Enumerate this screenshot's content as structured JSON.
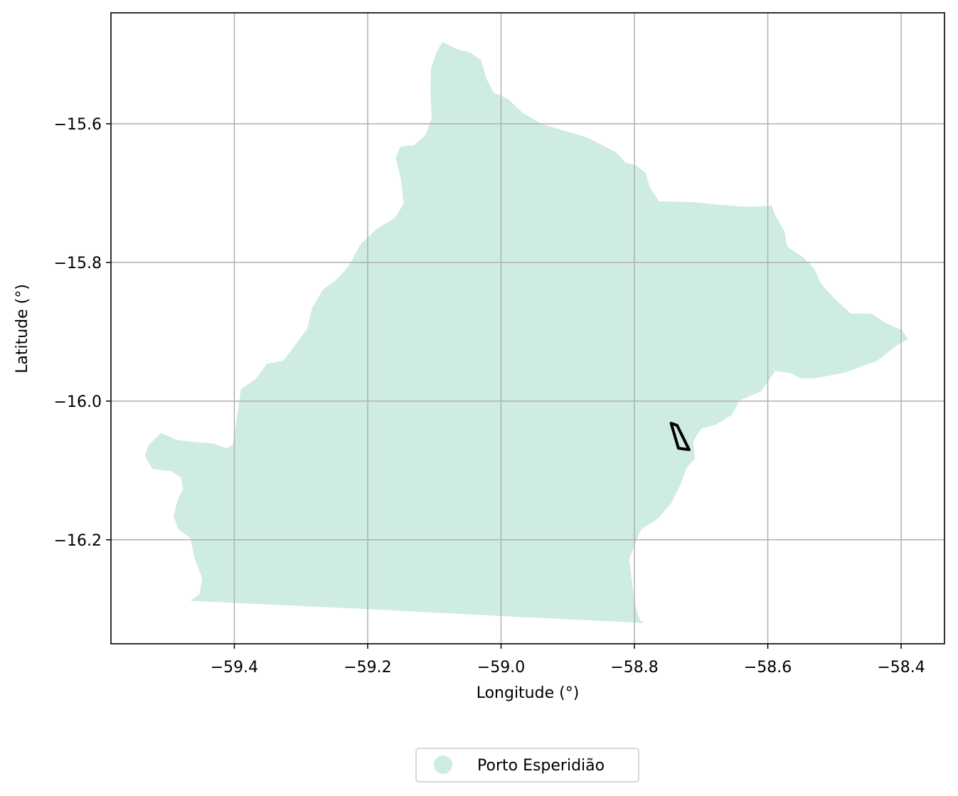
{
  "colors": {
    "region_fill": "#cfece0",
    "outline": "#000000",
    "grid": "#b0b0b0"
  },
  "chart_data": {
    "type": "map",
    "xlabel": "Longitude (°)",
    "ylabel": "Latitude (°)",
    "xlim": [
      -59.585,
      -58.335
    ],
    "ylim": [
      -16.35,
      -15.44
    ],
    "grid": true,
    "legend_placement": "bottom-center",
    "x_ticks": [
      {
        "value": -59.4,
        "label": "−59.4"
      },
      {
        "value": -59.2,
        "label": "−59.2"
      },
      {
        "value": -59.0,
        "label": "−59.0"
      },
      {
        "value": -58.8,
        "label": "−58.8"
      },
      {
        "value": -58.6,
        "label": "−58.6"
      },
      {
        "value": -58.4,
        "label": "−58.4"
      }
    ],
    "y_ticks": [
      {
        "value": -15.6,
        "label": "−15.6"
      },
      {
        "value": -15.8,
        "label": "−15.8"
      },
      {
        "value": -16.0,
        "label": "−16.0"
      },
      {
        "value": -16.2,
        "label": "−16.2"
      }
    ],
    "legend": [
      {
        "label": "Porto Esperidião",
        "color": "#cfece0"
      }
    ],
    "region": {
      "name": "Porto Esperidião",
      "polygon": [
        [
          -59.088,
          -15.482
        ],
        [
          -59.064,
          -15.493
        ],
        [
          -59.047,
          -15.497
        ],
        [
          -59.03,
          -15.508
        ],
        [
          -59.022,
          -15.535
        ],
        [
          -59.011,
          -15.555
        ],
        [
          -58.99,
          -15.564
        ],
        [
          -58.968,
          -15.584
        ],
        [
          -58.94,
          -15.6
        ],
        [
          -58.87,
          -15.62
        ],
        [
          -58.828,
          -15.641
        ],
        [
          -58.813,
          -15.656
        ],
        [
          -58.796,
          -15.661
        ],
        [
          -58.783,
          -15.671
        ],
        [
          -58.777,
          -15.691
        ],
        [
          -58.763,
          -15.712
        ],
        [
          -58.711,
          -15.713
        ],
        [
          -58.671,
          -15.717
        ],
        [
          -58.63,
          -15.72
        ],
        [
          -58.594,
          -15.718
        ],
        [
          -58.588,
          -15.733
        ],
        [
          -58.575,
          -15.755
        ],
        [
          -58.571,
          -15.777
        ],
        [
          -58.548,
          -15.792
        ],
        [
          -58.53,
          -15.809
        ],
        [
          -58.52,
          -15.831
        ],
        [
          -58.5,
          -15.852
        ],
        [
          -58.475,
          -15.874
        ],
        [
          -58.444,
          -15.874
        ],
        [
          -58.424,
          -15.887
        ],
        [
          -58.398,
          -15.898
        ],
        [
          -58.39,
          -15.911
        ],
        [
          -58.407,
          -15.92
        ],
        [
          -58.436,
          -15.942
        ],
        [
          -58.485,
          -15.959
        ],
        [
          -58.528,
          -15.967
        ],
        [
          -58.551,
          -15.967
        ],
        [
          -58.567,
          -15.959
        ],
        [
          -58.589,
          -15.957
        ],
        [
          -58.61,
          -15.986
        ],
        [
          -58.642,
          -15.999
        ],
        [
          -58.654,
          -16.02
        ],
        [
          -58.678,
          -16.034
        ],
        [
          -58.7,
          -16.04
        ],
        [
          -58.712,
          -16.059
        ],
        [
          -58.709,
          -16.083
        ],
        [
          -58.722,
          -16.097
        ],
        [
          -58.73,
          -16.118
        ],
        [
          -58.744,
          -16.146
        ],
        [
          -58.764,
          -16.169
        ],
        [
          -58.79,
          -16.185
        ],
        [
          -58.796,
          -16.199
        ],
        [
          -58.808,
          -16.228
        ],
        [
          -58.803,
          -16.265
        ],
        [
          -58.8,
          -16.29
        ],
        [
          -58.792,
          -16.315
        ],
        [
          -58.786,
          -16.32
        ],
        [
          -59.0,
          -16.31
        ],
        [
          -59.2,
          -16.3
        ],
        [
          -59.4,
          -16.291
        ],
        [
          -59.466,
          -16.288
        ],
        [
          -59.452,
          -16.278
        ],
        [
          -59.448,
          -16.256
        ],
        [
          -59.459,
          -16.228
        ],
        [
          -59.466,
          -16.198
        ],
        [
          -59.484,
          -16.185
        ],
        [
          -59.491,
          -16.166
        ],
        [
          -59.485,
          -16.142
        ],
        [
          -59.477,
          -16.127
        ],
        [
          -59.48,
          -16.11
        ],
        [
          -59.495,
          -16.101
        ],
        [
          -59.523,
          -16.098
        ],
        [
          -59.534,
          -16.079
        ],
        [
          -59.529,
          -16.064
        ],
        [
          -59.51,
          -16.046
        ],
        [
          -59.486,
          -16.056
        ],
        [
          -59.46,
          -16.059
        ],
        [
          -59.432,
          -16.061
        ],
        [
          -59.412,
          -16.068
        ],
        [
          -59.402,
          -16.063
        ],
        [
          -59.398,
          -16.037
        ],
        [
          -59.39,
          -15.983
        ],
        [
          -59.368,
          -15.968
        ],
        [
          -59.351,
          -15.946
        ],
        [
          -59.327,
          -15.942
        ],
        [
          -59.31,
          -15.921
        ],
        [
          -59.291,
          -15.896
        ],
        [
          -59.283,
          -15.865
        ],
        [
          -59.267,
          -15.839
        ],
        [
          -59.248,
          -15.826
        ],
        [
          -59.229,
          -15.806
        ],
        [
          -59.211,
          -15.774
        ],
        [
          -59.187,
          -15.752
        ],
        [
          -59.159,
          -15.736
        ],
        [
          -59.146,
          -15.715
        ],
        [
          -59.15,
          -15.681
        ],
        [
          -59.158,
          -15.649
        ],
        [
          -59.151,
          -15.633
        ],
        [
          -59.131,
          -15.631
        ],
        [
          -59.113,
          -15.616
        ],
        [
          -59.104,
          -15.591
        ],
        [
          -59.106,
          -15.552
        ],
        [
          -59.105,
          -15.52
        ],
        [
          -59.097,
          -15.497
        ]
      ],
      "outline_feature": [
        [
          -58.745,
          -16.032
        ],
        [
          -58.734,
          -16.068
        ],
        [
          -58.718,
          -16.07
        ],
        [
          -58.736,
          -16.035
        ]
      ]
    }
  }
}
